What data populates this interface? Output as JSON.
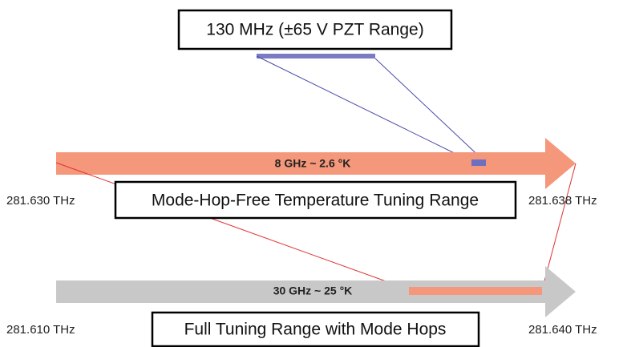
{
  "pzt_box": {
    "label": "130 MHz (±65 V PZT Range)"
  },
  "temperature_arrow": {
    "label": "8 GHz ~ 2.6 °K",
    "left_freq": "281.630 THz",
    "right_freq": "281.638 THz",
    "caption": "Mode-Hop-Free Temperature Tuning Range"
  },
  "full_arrow": {
    "label": "30 GHz ~ 25 °K",
    "left_freq": "281.610 THz",
    "right_freq": "281.640 THz",
    "caption": "Full Tuning Range with Mode Hops"
  }
}
